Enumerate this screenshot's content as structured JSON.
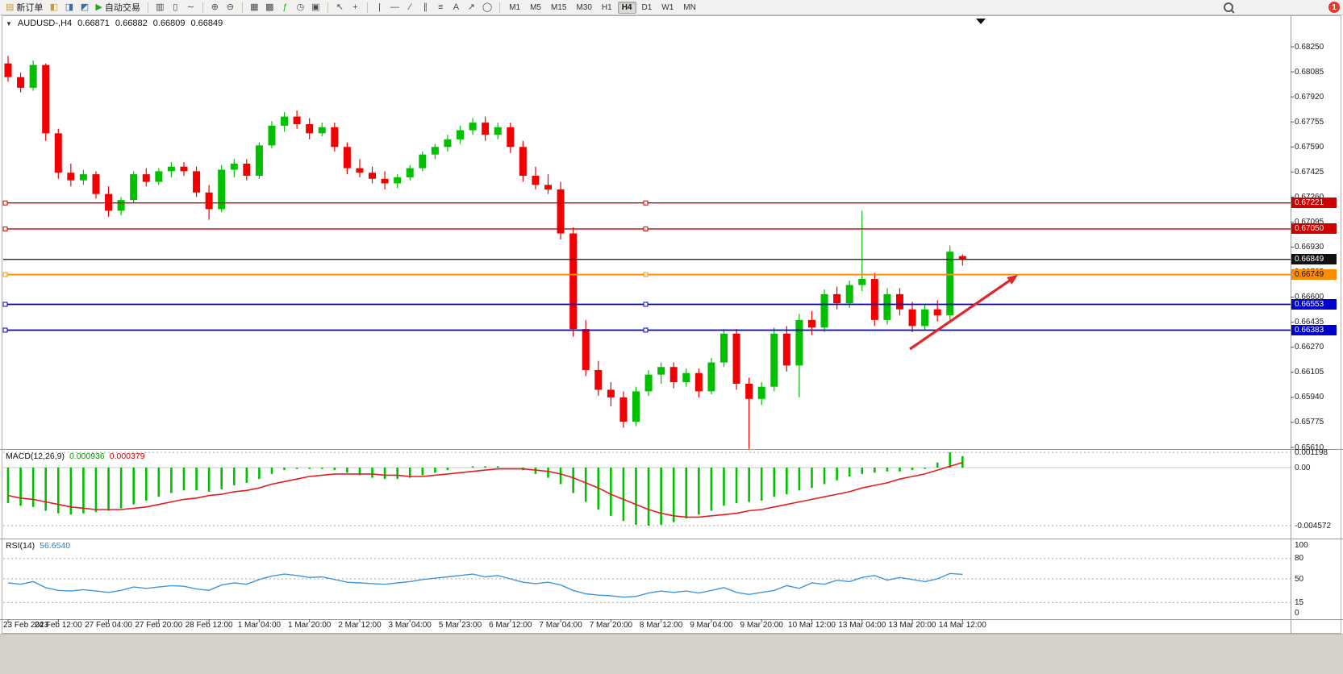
{
  "toolbar": {
    "buttons": [
      {
        "name": "new-order-button",
        "glyph": "▤",
        "glyph_color": "#c89b3c",
        "label": "新订单"
      },
      {
        "name": "market-watch-icon",
        "glyph": "◧",
        "glyph_color": "#c89b3c"
      },
      {
        "name": "data-window-icon",
        "glyph": "◨",
        "glyph_color": "#3a6ea5"
      },
      {
        "name": "navigator-icon",
        "glyph": "◩",
        "glyph_color": "#3a6ea5"
      },
      {
        "name": "autotrading-button",
        "glyph": "▶",
        "glyph_color": "#22aa22",
        "label": "自动交易"
      },
      {
        "sep": true
      },
      {
        "name": "bar-chart-icon",
        "glyph": "▥"
      },
      {
        "name": "candlestick-chart-icon",
        "glyph": "▯"
      },
      {
        "name": "line-chart-icon",
        "glyph": "∼"
      },
      {
        "sep": true
      },
      {
        "name": "zoom-in-icon",
        "glyph": "⊕"
      },
      {
        "name": "zoom-out-icon",
        "glyph": "⊖"
      },
      {
        "sep": true
      },
      {
        "name": "tile-windows-icon",
        "glyph": "▦"
      },
      {
        "name": "cascade-windows-icon",
        "glyph": "▩"
      },
      {
        "name": "indicators-icon",
        "glyph": "ƒ",
        "glyph_color": "#22aa22"
      },
      {
        "name": "period-icon",
        "glyph": "◷"
      },
      {
        "name": "templates-icon",
        "glyph": "▣"
      },
      {
        "sep": true
      },
      {
        "name": "cursor-icon",
        "glyph": "↖"
      },
      {
        "name": "crosshair-icon",
        "glyph": "+"
      },
      {
        "sep": true
      },
      {
        "name": "vertical-line-icon",
        "glyph": "|"
      },
      {
        "name": "horizontal-line-icon",
        "glyph": "—"
      },
      {
        "name": "trendline-icon",
        "glyph": "∕"
      },
      {
        "name": "channel-icon",
        "glyph": "∥"
      },
      {
        "name": "fibonacci-icon",
        "glyph": "≡"
      },
      {
        "name": "text-icon",
        "glyph": "A"
      },
      {
        "name": "arrows-icon",
        "glyph": "↗"
      },
      {
        "name": "shapes-icon",
        "glyph": "◯"
      },
      {
        "sep": true
      }
    ],
    "timeframes": [
      "M1",
      "M5",
      "M15",
      "M30",
      "H1",
      "H4",
      "D1",
      "W1",
      "MN"
    ],
    "active_timeframe": "H4",
    "notification_count": "1"
  },
  "chart_data": {
    "type": "candlestick",
    "title": "AUDUSD-,H4",
    "ohlc": {
      "open": "0.66871",
      "high": "0.66882",
      "low": "0.66809",
      "close": "0.66849"
    },
    "ylim": [
      0.6561,
      0.6825
    ],
    "price_axis_labels": [
      0.6825,
      0.68085,
      0.6792,
      0.67755,
      0.6759,
      0.67425,
      0.6726,
      0.67095,
      0.6693,
      0.66765,
      0.666,
      0.66435,
      0.6627,
      0.66105,
      0.6594,
      0.65775,
      0.6561
    ],
    "time_labels": [
      "23 Feb 2023",
      "24 Feb 12:00",
      "27 Feb 04:00",
      "27 Feb 20:00",
      "28 Feb 12:00",
      "1 Mar 04:00",
      "1 Mar 20:00",
      "2 Mar 12:00",
      "3 Mar 04:00",
      "5 Mar 23:00",
      "6 Mar 12:00",
      "7 Mar 04:00",
      "7 Mar 20:00",
      "8 Mar 12:00",
      "9 Mar 04:00",
      "9 Mar 20:00",
      "10 Mar 12:00",
      "13 Mar 04:00",
      "13 Mar 20:00",
      "14 Mar 12:00"
    ],
    "candles": [
      [
        0.6814,
        0.6819,
        0.6802,
        0.6805
      ],
      [
        0.6805,
        0.6808,
        0.6795,
        0.6798
      ],
      [
        0.6798,
        0.6816,
        0.6796,
        0.6813
      ],
      [
        0.6813,
        0.6814,
        0.6763,
        0.6768
      ],
      [
        0.6768,
        0.6771,
        0.6738,
        0.6742
      ],
      [
        0.6742,
        0.6748,
        0.6733,
        0.6737
      ],
      [
        0.6737,
        0.6744,
        0.6734,
        0.6741
      ],
      [
        0.6741,
        0.6743,
        0.6725,
        0.6728
      ],
      [
        0.6728,
        0.6733,
        0.6713,
        0.6717
      ],
      [
        0.6717,
        0.6726,
        0.6714,
        0.6724
      ],
      [
        0.6724,
        0.6743,
        0.6722,
        0.6741
      ],
      [
        0.6741,
        0.6745,
        0.6733,
        0.6736
      ],
      [
        0.6736,
        0.6745,
        0.6734,
        0.6743
      ],
      [
        0.6743,
        0.6749,
        0.6739,
        0.6746
      ],
      [
        0.6746,
        0.6749,
        0.674,
        0.6743
      ],
      [
        0.6743,
        0.6746,
        0.6726,
        0.6729
      ],
      [
        0.6729,
        0.6734,
        0.6711,
        0.6718
      ],
      [
        0.6718,
        0.6747,
        0.6716,
        0.6744
      ],
      [
        0.6744,
        0.6751,
        0.6739,
        0.6748
      ],
      [
        0.6748,
        0.6751,
        0.6737,
        0.674
      ],
      [
        0.674,
        0.6762,
        0.6738,
        0.676
      ],
      [
        0.676,
        0.6776,
        0.6758,
        0.6773
      ],
      [
        0.6773,
        0.6782,
        0.6769,
        0.6779
      ],
      [
        0.6779,
        0.6783,
        0.6771,
        0.6774
      ],
      [
        0.6774,
        0.6778,
        0.6764,
        0.6768
      ],
      [
        0.6768,
        0.6775,
        0.6766,
        0.6772
      ],
      [
        0.6772,
        0.6775,
        0.6756,
        0.6759
      ],
      [
        0.6759,
        0.6762,
        0.6741,
        0.6745
      ],
      [
        0.6745,
        0.6751,
        0.6739,
        0.6742
      ],
      [
        0.6742,
        0.6746,
        0.6735,
        0.6738
      ],
      [
        0.6738,
        0.6743,
        0.6731,
        0.6735
      ],
      [
        0.6735,
        0.6741,
        0.6732,
        0.6739
      ],
      [
        0.6739,
        0.6747,
        0.6737,
        0.6745
      ],
      [
        0.6745,
        0.6756,
        0.6743,
        0.6754
      ],
      [
        0.6754,
        0.6761,
        0.6751,
        0.6759
      ],
      [
        0.6759,
        0.6767,
        0.6756,
        0.6764
      ],
      [
        0.6764,
        0.6773,
        0.6761,
        0.677
      ],
      [
        0.677,
        0.6778,
        0.6767,
        0.6775
      ],
      [
        0.6775,
        0.6779,
        0.6763,
        0.6767
      ],
      [
        0.6767,
        0.6775,
        0.6764,
        0.6772
      ],
      [
        0.6772,
        0.6775,
        0.6755,
        0.6759
      ],
      [
        0.6759,
        0.6763,
        0.6736,
        0.674
      ],
      [
        0.674,
        0.6746,
        0.6731,
        0.6734
      ],
      [
        0.6734,
        0.6741,
        0.6728,
        0.6731
      ],
      [
        0.6731,
        0.6736,
        0.6698,
        0.6702
      ],
      [
        0.6702,
        0.6706,
        0.6634,
        0.6639
      ],
      [
        0.6639,
        0.6645,
        0.6608,
        0.6612
      ],
      [
        0.6612,
        0.6618,
        0.6595,
        0.6599
      ],
      [
        0.6599,
        0.6604,
        0.6588,
        0.6594
      ],
      [
        0.6594,
        0.6598,
        0.6574,
        0.6578
      ],
      [
        0.6578,
        0.6601,
        0.6575,
        0.6598
      ],
      [
        0.6598,
        0.6612,
        0.6595,
        0.6609
      ],
      [
        0.6609,
        0.6617,
        0.6603,
        0.6614
      ],
      [
        0.6614,
        0.6617,
        0.66,
        0.6604
      ],
      [
        0.6604,
        0.6613,
        0.6601,
        0.661
      ],
      [
        0.661,
        0.6613,
        0.6594,
        0.6598
      ],
      [
        0.6598,
        0.662,
        0.6596,
        0.6617
      ],
      [
        0.6617,
        0.6639,
        0.6614,
        0.6636
      ],
      [
        0.6636,
        0.6639,
        0.6599,
        0.6603
      ],
      [
        0.6603,
        0.6607,
        0.656,
        0.6593
      ],
      [
        0.6593,
        0.6604,
        0.6589,
        0.6601
      ],
      [
        0.6601,
        0.664,
        0.6598,
        0.6636
      ],
      [
        0.6636,
        0.6641,
        0.6611,
        0.6615
      ],
      [
        0.6615,
        0.6649,
        0.6594,
        0.6645
      ],
      [
        0.6645,
        0.6651,
        0.6635,
        0.664
      ],
      [
        0.664,
        0.6665,
        0.6637,
        0.6662
      ],
      [
        0.6662,
        0.6667,
        0.6652,
        0.6656
      ],
      [
        0.6656,
        0.6671,
        0.6653,
        0.6668
      ],
      [
        0.6668,
        0.6717,
        0.6664,
        0.6672
      ],
      [
        0.6672,
        0.6676,
        0.6641,
        0.6645
      ],
      [
        0.6645,
        0.6666,
        0.6642,
        0.6662
      ],
      [
        0.6662,
        0.6666,
        0.6648,
        0.6652
      ],
      [
        0.6652,
        0.6657,
        0.6637,
        0.6641
      ],
      [
        0.6641,
        0.6655,
        0.6638,
        0.6652
      ],
      [
        0.6652,
        0.6658,
        0.6644,
        0.6648
      ],
      [
        0.6648,
        0.6694,
        0.6645,
        0.669
      ],
      [
        0.66871,
        0.66882,
        0.66809,
        0.66849
      ]
    ],
    "hlines": [
      {
        "price": 0.67221,
        "label": "0.67221",
        "color": "#cc0000",
        "text_color": "#ffffff",
        "width": 1.4,
        "handles": true
      },
      {
        "price": 0.6705,
        "label": "0.67050",
        "color": "#cc0000",
        "text_color": "#ffffff",
        "width": 1.4,
        "handles": true
      },
      {
        "price": 0.66849,
        "label": "0.66849",
        "color": "#111111",
        "text_color": "#ffffff",
        "width": 1.2,
        "handles": false
      },
      {
        "price": 0.66749,
        "label": "0.66749",
        "color": "#ff8c00",
        "text_color": "#111111",
        "width": 1.8,
        "handles": true
      },
      {
        "price": 0.66553,
        "label": "0.66553",
        "color": "#0000cc",
        "text_color": "#ffffff",
        "width": 1.8,
        "handles": true
      },
      {
        "price": 0.66383,
        "label": "0.66383",
        "color": "#0000cc",
        "text_color": "#ffffff",
        "width": 1.8,
        "handles": true
      }
    ],
    "trend_arrow": {
      "from": [
        1128,
        433
      ],
      "to": [
        1262,
        341
      ]
    },
    "macd": {
      "label": "MACD(12,26,9)",
      "value_main": "0.000936",
      "value_signal": "0.000379",
      "axis_labels": [
        "0.001198",
        "0.00",
        "-0.004572"
      ],
      "axis_values": [
        0.001198,
        0,
        -0.004572
      ],
      "values": [
        -0.0028,
        -0.003,
        -0.0031,
        -0.0034,
        -0.0036,
        -0.0037,
        -0.0036,
        -0.0035,
        -0.0034,
        -0.0032,
        -0.0029,
        -0.0026,
        -0.0023,
        -0.002,
        -0.0018,
        -0.0018,
        -0.0019,
        -0.0017,
        -0.0014,
        -0.0012,
        -0.0009,
        -0.0005,
        -0.0002,
        -0.0001,
        -0.0001,
        -0.0001,
        -0.0002,
        -0.0004,
        -0.0006,
        -0.0008,
        -0.0009,
        -0.0009,
        -0.0008,
        -0.0006,
        -0.0004,
        -0.0002,
        0.0,
        0.0001,
        0.0001,
        0.0001,
        0.0,
        -0.0002,
        -0.0005,
        -0.0008,
        -0.0013,
        -0.002,
        -0.0027,
        -0.0033,
        -0.0038,
        -0.0042,
        -0.0045,
        -0.00457,
        -0.0045,
        -0.0043,
        -0.004,
        -0.0037,
        -0.0034,
        -0.003,
        -0.0028,
        -0.0027,
        -0.0026,
        -0.0023,
        -0.0021,
        -0.0018,
        -0.0016,
        -0.0013,
        -0.001,
        -0.0007,
        -0.0005,
        -0.0004,
        -0.0003,
        -0.0003,
        -0.0002,
        -0.0001,
        0.0004,
        0.0012,
        0.0009
      ],
      "signal": [
        -0.0022,
        -0.0024,
        -0.0025,
        -0.0027,
        -0.0029,
        -0.0031,
        -0.0032,
        -0.0033,
        -0.0033,
        -0.0033,
        -0.0032,
        -0.0031,
        -0.0029,
        -0.0027,
        -0.0025,
        -0.0024,
        -0.0022,
        -0.0021,
        -0.0019,
        -0.0018,
        -0.0016,
        -0.0013,
        -0.0011,
        -0.0009,
        -0.0007,
        -0.0006,
        -0.0005,
        -0.0005,
        -0.0005,
        -0.0005,
        -0.0006,
        -0.0006,
        -0.0007,
        -0.0007,
        -0.0006,
        -0.0005,
        -0.0004,
        -0.0003,
        -0.0002,
        -0.0001,
        -0.0001,
        -0.0001,
        -0.0002,
        -0.0003,
        -0.0005,
        -0.0008,
        -0.0012,
        -0.0016,
        -0.0021,
        -0.0025,
        -0.0029,
        -0.0033,
        -0.0036,
        -0.0038,
        -0.0039,
        -0.0039,
        -0.0038,
        -0.0037,
        -0.0036,
        -0.0034,
        -0.0033,
        -0.0031,
        -0.0029,
        -0.0027,
        -0.0025,
        -0.0023,
        -0.0021,
        -0.0019,
        -0.0016,
        -0.0014,
        -0.0012,
        -0.0009,
        -0.0007,
        -0.0005,
        -0.0002,
        0.0001,
        0.0004
      ]
    },
    "rsi": {
      "label": "RSI(14)",
      "value": "56.6540",
      "axis_values": [
        100,
        80,
        50,
        15,
        0
      ],
      "levels": [
        80,
        50,
        15
      ],
      "values": [
        44,
        42,
        46,
        37,
        33,
        32,
        34,
        32,
        30,
        33,
        38,
        36,
        38,
        40,
        39,
        35,
        33,
        41,
        44,
        42,
        49,
        54,
        57,
        55,
        52,
        53,
        49,
        45,
        44,
        43,
        42,
        44,
        46,
        49,
        51,
        53,
        55,
        57,
        53,
        55,
        50,
        45,
        43,
        45,
        41,
        33,
        28,
        26,
        25,
        23,
        24,
        29,
        32,
        30,
        32,
        29,
        33,
        37,
        30,
        27,
        30,
        33,
        40,
        36,
        44,
        42,
        48,
        46,
        52,
        55,
        48,
        52,
        49,
        46,
        50,
        58,
        56.65
      ]
    }
  },
  "colors": {
    "candle_up": "#00c000",
    "candle_down": "#f20000",
    "macd_hist": "#00c000",
    "macd_signal": "#e02020",
    "rsi_line": "#3f97d9",
    "arrow": "#e02626"
  }
}
